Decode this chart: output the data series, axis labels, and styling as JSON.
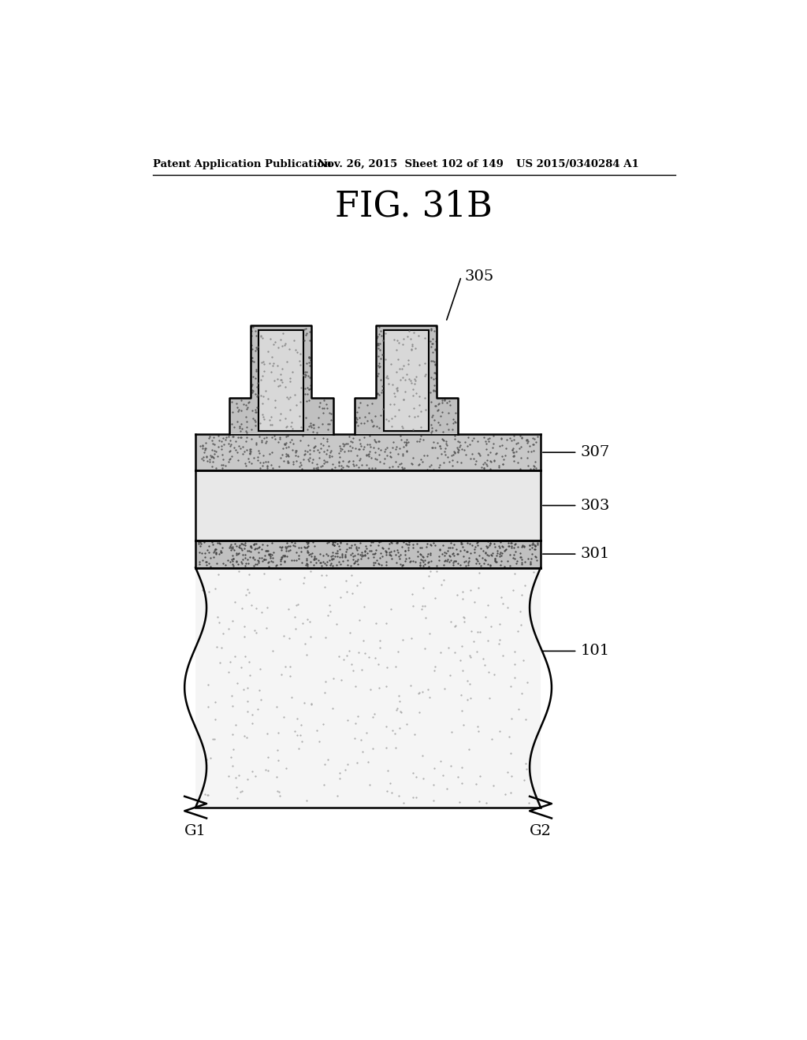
{
  "title": "FIG. 31B",
  "header_left": "Patent Application Publication",
  "header_mid": "Nov. 26, 2015  Sheet 102 of 149",
  "header_right": "US 2015/0340284 A1",
  "bg_color": "#ffffff",
  "label_305": "305",
  "label_307": "307",
  "label_303": "303",
  "label_301": "301",
  "label_101": "101",
  "label_G1": "G1",
  "label_G2": "G2"
}
